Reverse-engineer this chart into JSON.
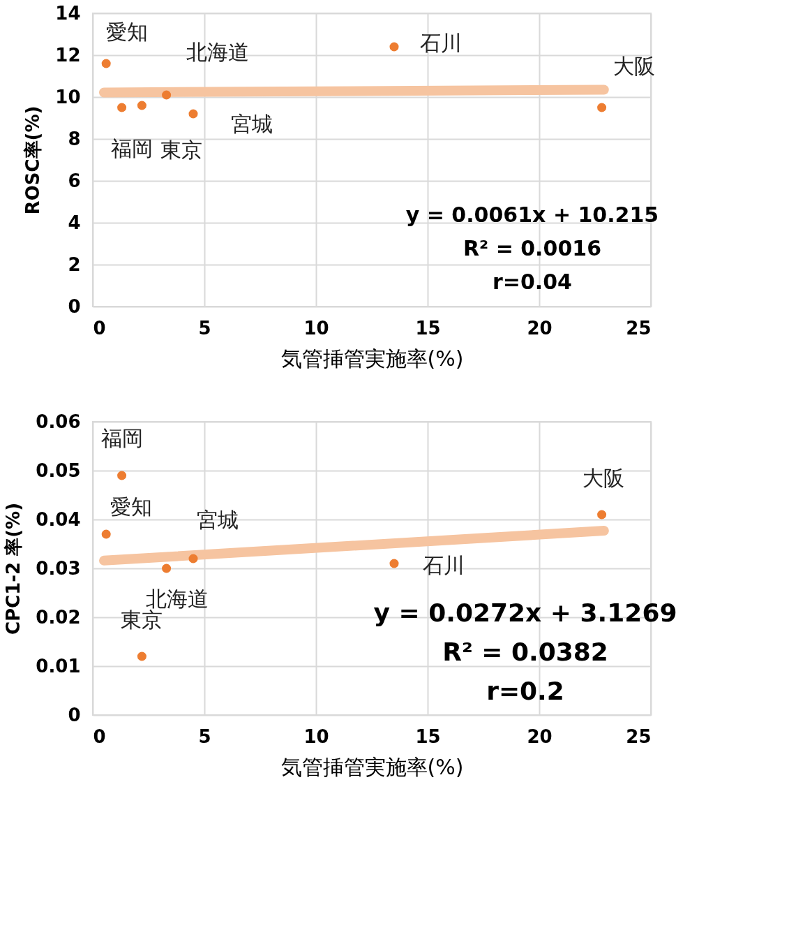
{
  "chart_data": [
    {
      "type": "scatter",
      "xlabel": "気管挿管実施率(%)",
      "ylabel": "ROSC率(%)",
      "xlim": [
        0,
        25
      ],
      "xticks": [
        0,
        5,
        10,
        15,
        20,
        25
      ],
      "ylim": [
        0,
        14
      ],
      "yticks": [
        0,
        2,
        4,
        6,
        8,
        10,
        12,
        14
      ],
      "grid": true,
      "series": [
        {
          "color": "#ed7d31",
          "marker": "circle",
          "x": [
            0.6,
            1.3,
            2.2,
            3.3,
            4.5,
            13.5,
            22.8
          ],
          "values": [
            11.6,
            9.5,
            9.6,
            10.1,
            9.2,
            12.4,
            9.5
          ]
        },
        {
          "type": "line",
          "color": "#f6c4a0",
          "x": [
            0.5,
            22.9
          ],
          "values": [
            10.22,
            10.35
          ]
        }
      ],
      "annotations": [
        {
          "text": "愛知",
          "x": 0.6,
          "y": 11.6
        },
        {
          "text": "福岡",
          "x": 1.3,
          "y": 9.5
        },
        {
          "text": "東京",
          "x": 2.2,
          "y": 9.6
        },
        {
          "text": "北海道",
          "x": 3.3,
          "y": 10.1
        },
        {
          "text": "宮城",
          "x": 4.5,
          "y": 9.2
        },
        {
          "text": "石川",
          "x": 13.5,
          "y": 12.4
        },
        {
          "text": "大阪",
          "x": 22.8,
          "y": 9.5
        },
        "y = 0.0061x + 10.215",
        "R² = 0.0016",
        "r=0.04"
      ]
    },
    {
      "type": "scatter",
      "xlabel": "気管挿管実施率(%)",
      "ylabel": "CPC1-2 率(%)",
      "xlim": [
        0,
        25
      ],
      "xticks": [
        0,
        5,
        10,
        15,
        20,
        25
      ],
      "ylim": [
        0,
        0.06
      ],
      "yticks": [
        0,
        0.01,
        0.02,
        0.03,
        0.04,
        0.05,
        0.06
      ],
      "grid": true,
      "series": [
        {
          "color": "#ed7d31",
          "marker": "circle",
          "x": [
            1.3,
            0.6,
            3.3,
            4.5,
            2.2,
            13.5,
            22.8
          ],
          "values": [
            0.049,
            0.037,
            0.03,
            0.032,
            0.012,
            0.031,
            0.041
          ]
        },
        {
          "type": "line",
          "color": "#f6c4a0",
          "x": [
            0.5,
            22.9
          ],
          "values": [
            0.0316,
            0.0377
          ]
        }
      ],
      "annotations": [
        {
          "text": "福岡",
          "x": 1.3,
          "y": 0.049
        },
        {
          "text": "愛知",
          "x": 0.6,
          "y": 0.037
        },
        {
          "text": "北海道",
          "x": 3.3,
          "y": 0.03
        },
        {
          "text": "宮城",
          "x": 4.5,
          "y": 0.032
        },
        {
          "text": "東京",
          "x": 2.2,
          "y": 0.012
        },
        {
          "text": "石川",
          "x": 13.5,
          "y": 0.031
        },
        {
          "text": "大阪",
          "x": 22.8,
          "y": 0.041
        },
        "y = 0.0272x + 3.1269",
        "R² = 0.0382",
        "r=0.2"
      ]
    }
  ]
}
